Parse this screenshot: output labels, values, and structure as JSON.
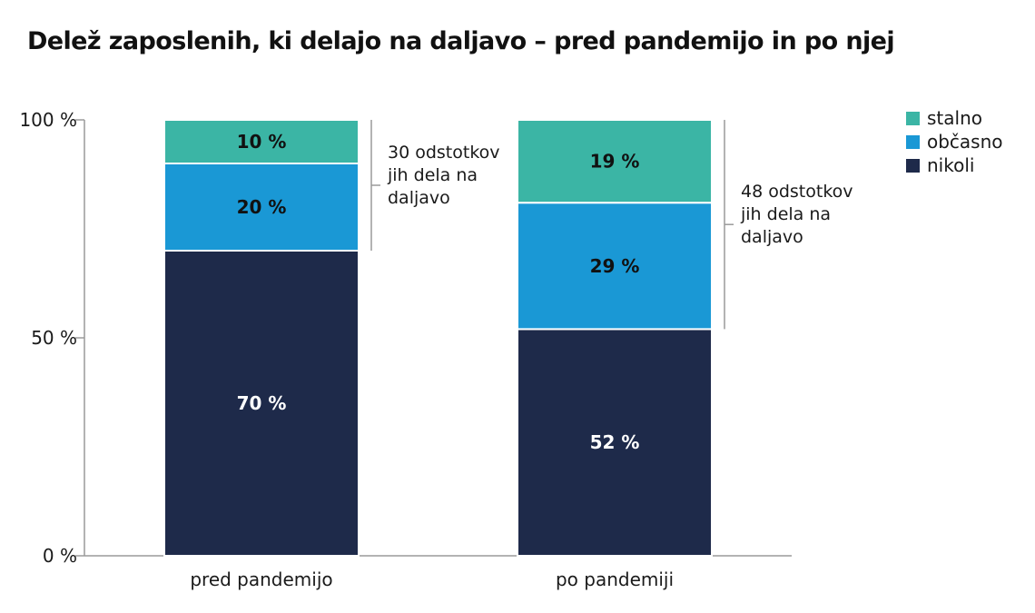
{
  "chart_data": {
    "type": "bar",
    "stacked": true,
    "title": "Delež zaposlenih, ki delajo na daljavo – pred pandemijo in po njej",
    "categories": [
      "pred pandemijo",
      "po pandemiji"
    ],
    "series": [
      {
        "name": "nikoli",
        "values": [
          70,
          52
        ],
        "labels": [
          "70 %",
          "52 %"
        ],
        "color": "#1e2a4a"
      },
      {
        "name": "občasno",
        "values": [
          20,
          29
        ],
        "labels": [
          "20 %",
          "29 %"
        ],
        "color": "#1a98d5"
      },
      {
        "name": "stalno",
        "values": [
          10,
          19
        ],
        "labels": [
          "10 %",
          "19 %"
        ],
        "color": "#3bb5a5"
      }
    ],
    "ylim": [
      0,
      100
    ],
    "yticks": [
      0,
      50,
      100
    ],
    "ytick_labels": [
      "0 %",
      "50 %",
      "100 %"
    ],
    "xlabel": "",
    "ylabel": "",
    "grid": false,
    "legend_position": "top-right",
    "annotations": [
      {
        "category": "pred pandemijo",
        "lines": [
          "30 odstotkov",
          "jih dela na",
          "daljavo"
        ]
      },
      {
        "category": "po pandemiji",
        "lines": [
          "48 odstotkov",
          "jih dela na",
          "daljavo"
        ]
      }
    ]
  }
}
